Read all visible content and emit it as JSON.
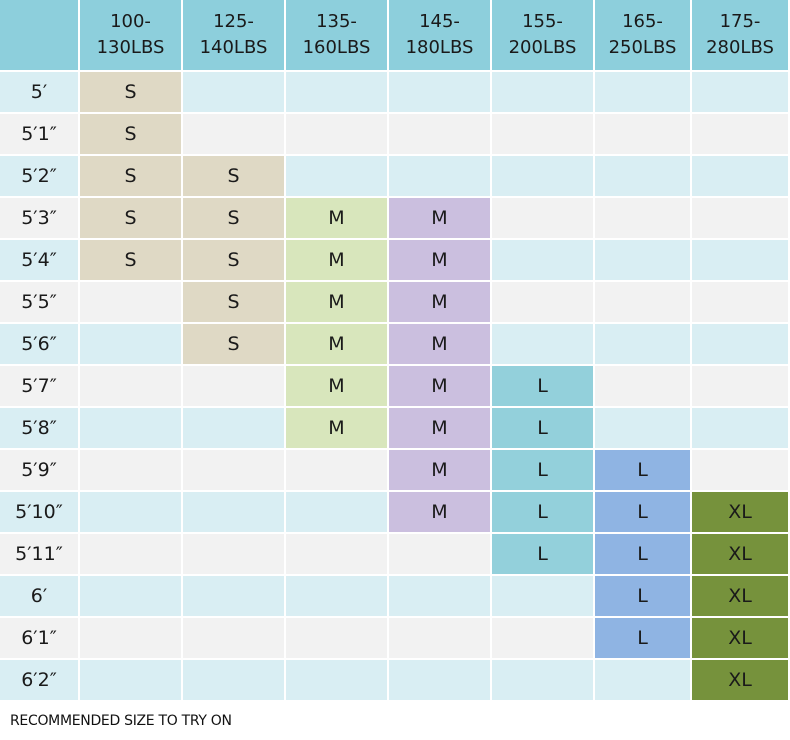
{
  "table": {
    "header": [
      "100-\n130LBS",
      "125-\n140LBS",
      "135-\n160LBS",
      "145-\n180LBS",
      "155-\n200LBS",
      "165-\n250LBS",
      "175-\n280LBS"
    ],
    "rows": [
      {
        "height": "5′",
        "sizes": [
          "S",
          null,
          null,
          null,
          null,
          null,
          null
        ]
      },
      {
        "height": "5′1″",
        "sizes": [
          "S",
          null,
          null,
          null,
          null,
          null,
          null
        ]
      },
      {
        "height": "5′2″",
        "sizes": [
          "S",
          "S",
          null,
          null,
          null,
          null,
          null
        ]
      },
      {
        "height": "5′3″",
        "sizes": [
          "S",
          "S",
          "M",
          "M",
          null,
          null,
          null
        ]
      },
      {
        "height": "5′4″",
        "sizes": [
          "S",
          "S",
          "M",
          "M",
          null,
          null,
          null
        ]
      },
      {
        "height": "5′5″",
        "sizes": [
          null,
          "S",
          "M",
          "M",
          null,
          null,
          null
        ]
      },
      {
        "height": "5′6″",
        "sizes": [
          null,
          "S",
          "M",
          "M",
          null,
          null,
          null
        ]
      },
      {
        "height": "5′7″",
        "sizes": [
          null,
          null,
          "M",
          "M",
          "L",
          null,
          null
        ]
      },
      {
        "height": "5′8″",
        "sizes": [
          null,
          null,
          "M",
          "M",
          "L",
          null,
          null
        ]
      },
      {
        "height": "5′9″",
        "sizes": [
          null,
          null,
          null,
          "M",
          "L",
          "L",
          null
        ]
      },
      {
        "height": "5′10″",
        "sizes": [
          null,
          null,
          null,
          "M",
          "L",
          "L",
          "XL"
        ]
      },
      {
        "height": "5′11″",
        "sizes": [
          null,
          null,
          null,
          null,
          "L",
          "L",
          "XL"
        ]
      },
      {
        "height": "6′",
        "sizes": [
          null,
          null,
          null,
          null,
          null,
          "L",
          "XL"
        ]
      },
      {
        "height": "6′1″",
        "sizes": [
          null,
          null,
          null,
          null,
          null,
          "L",
          "XL"
        ]
      },
      {
        "height": "6′2″",
        "sizes": [
          null,
          null,
          null,
          null,
          null,
          null,
          "XL"
        ]
      }
    ]
  },
  "footer": "RECOMMENDED SIZE TO TRY ON"
}
